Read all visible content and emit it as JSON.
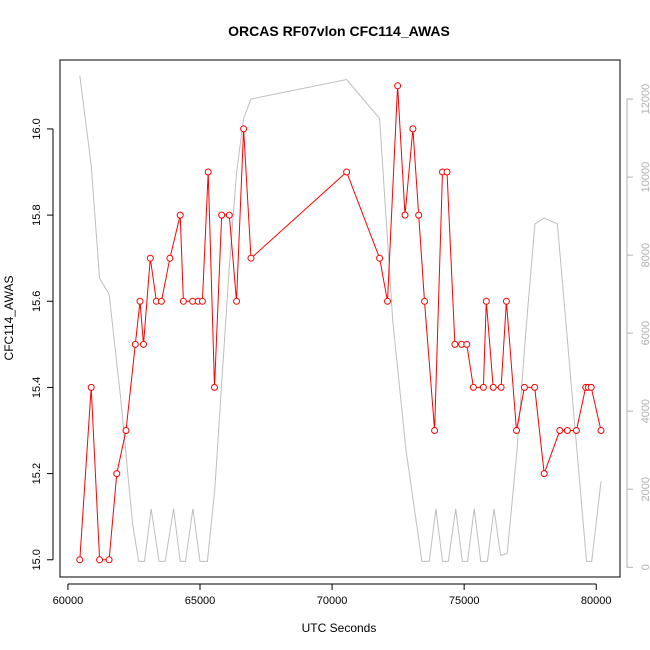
{
  "chart_data": {
    "type": "line",
    "title": "ORCAS RF07vlon CFC114_AWAS",
    "xlabel": "UTC Seconds",
    "ylabel": "CFC114_AWAS",
    "xlim": [
      59700,
      80900
    ],
    "ylim": [
      14.96,
      16.16
    ],
    "y2lim": [
      -250,
      13000
    ],
    "x_ticks": [
      60000,
      65000,
      70000,
      75000,
      80000
    ],
    "y_ticks": [
      15.0,
      15.2,
      15.4,
      15.6,
      15.8,
      16.0
    ],
    "y2_ticks": [
      0,
      2000,
      4000,
      6000,
      8000,
      10000,
      12000
    ],
    "grid": false,
    "legend": "none",
    "colors": {
      "primary": "#ff0000",
      "secondary": "#bebebe",
      "axis": "#000000",
      "right_axis": "#b0b0b0"
    },
    "series": [
      {
        "axis": "left",
        "style": "line+circles",
        "x": [
          60450,
          60880,
          61200,
          61560,
          61850,
          62200,
          62550,
          62730,
          62860,
          63120,
          63350,
          63540,
          63860,
          64250,
          64370,
          64720,
          64930,
          65090,
          65310,
          65550,
          65820,
          66110,
          66380,
          66650,
          66930,
          70550,
          71800,
          72100,
          72480,
          72760,
          73060,
          73280,
          73500,
          73880,
          74180,
          74350,
          74650,
          74900,
          75100,
          75350,
          75730,
          75840,
          76100,
          76400,
          76600,
          76980,
          77280,
          77670,
          78030,
          78620,
          78910,
          79250,
          79600,
          79700,
          79810,
          80180
        ],
        "y": [
          15.0,
          15.4,
          15.0,
          15.0,
          15.2,
          15.3,
          15.5,
          15.6,
          15.5,
          15.7,
          15.6,
          15.6,
          15.7,
          15.8,
          15.6,
          15.6,
          15.6,
          15.6,
          15.9,
          15.4,
          15.8,
          15.8,
          15.6,
          16.0,
          15.7,
          15.9,
          15.7,
          15.6,
          16.1,
          15.8,
          16.0,
          15.8,
          15.6,
          15.3,
          15.9,
          15.9,
          15.5,
          15.5,
          15.5,
          15.4,
          15.4,
          15.6,
          15.4,
          15.4,
          15.6,
          15.3,
          15.4,
          15.4,
          15.2,
          15.3,
          15.3,
          15.3,
          15.4,
          15.4,
          15.4,
          15.3
        ]
      },
      {
        "axis": "right",
        "style": "line",
        "x": [
          60450,
          60880,
          61200,
          61560,
          62000,
          62450,
          62680,
          62900,
          63150,
          63450,
          63680,
          64000,
          64250,
          64450,
          64730,
          65000,
          65280,
          65560,
          65830,
          66110,
          66380,
          66650,
          66930,
          70550,
          71800,
          72300,
          72800,
          73400,
          73680,
          73930,
          74180,
          74400,
          74680,
          74930,
          75130,
          75380,
          75630,
          75880,
          76130,
          76380,
          76630,
          77000,
          77330,
          77680,
          78030,
          78530,
          79630,
          79830,
          80180
        ],
        "y": [
          12600,
          10300,
          7400,
          7000,
          4300,
          1100,
          150,
          150,
          1500,
          150,
          150,
          1500,
          150,
          150,
          1500,
          150,
          150,
          2000,
          4800,
          7700,
          10100,
          11500,
          12000,
          12500,
          11500,
          6300,
          3000,
          150,
          150,
          1500,
          150,
          150,
          1500,
          150,
          150,
          1500,
          150,
          150,
          1500,
          300,
          350,
          3000,
          6000,
          8800,
          8950,
          8800,
          150,
          150,
          2200
        ]
      }
    ]
  }
}
